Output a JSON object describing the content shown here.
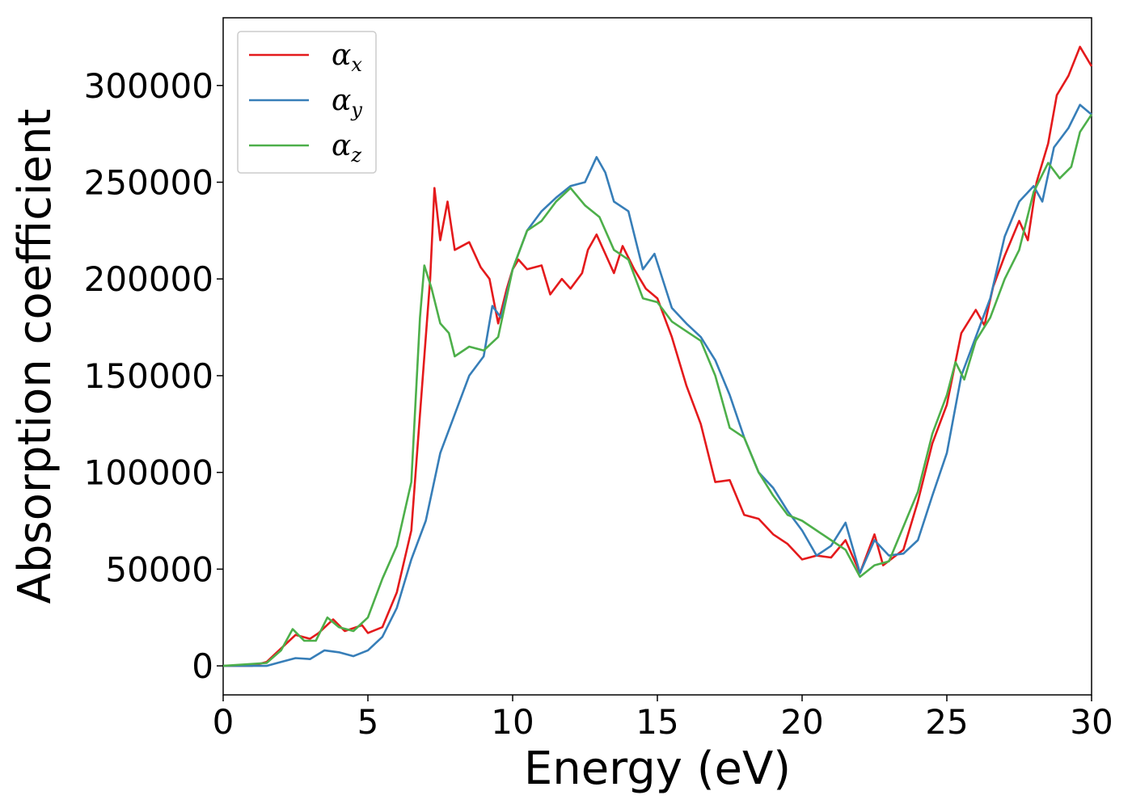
{
  "chart_data": {
    "type": "line",
    "title": "",
    "xlabel": "Energy (eV)",
    "ylabel": "Absorption coefficient",
    "xlim": [
      0,
      30
    ],
    "ylim": [
      -15000,
      335000
    ],
    "xticks": [
      0,
      5,
      10,
      15,
      20,
      25,
      30
    ],
    "yticks": [
      0,
      50000,
      100000,
      150000,
      200000,
      250000,
      300000
    ],
    "xtick_labels": [
      "0",
      "5",
      "10",
      "15",
      "20",
      "25",
      "30"
    ],
    "ytick_labels": [
      "0",
      "50000",
      "100000",
      "150000",
      "200000",
      "250000",
      "300000"
    ],
    "grid": false,
    "legend_position": "top-left",
    "series": [
      {
        "name": "α",
        "subscript": "x",
        "color": "#e41a1c",
        "points": [
          [
            0,
            0
          ],
          [
            1,
            0
          ],
          [
            1.5,
            2000
          ],
          [
            2,
            9000
          ],
          [
            2.5,
            16000
          ],
          [
            3,
            14000
          ],
          [
            3.3,
            17000
          ],
          [
            3.8,
            24000
          ],
          [
            4.2,
            18000
          ],
          [
            4.8,
            21000
          ],
          [
            5.0,
            17000
          ],
          [
            5.5,
            20000
          ],
          [
            6.0,
            38000
          ],
          [
            6.5,
            70000
          ],
          [
            6.8,
            130000
          ],
          [
            7.0,
            170000
          ],
          [
            7.15,
            200000
          ],
          [
            7.3,
            247000
          ],
          [
            7.5,
            220000
          ],
          [
            7.75,
            240000
          ],
          [
            8.0,
            215000
          ],
          [
            8.5,
            219000
          ],
          [
            8.9,
            206000
          ],
          [
            9.2,
            200000
          ],
          [
            9.5,
            177000
          ],
          [
            9.8,
            195000
          ],
          [
            10.0,
            205000
          ],
          [
            10.2,
            210000
          ],
          [
            10.5,
            205000
          ],
          [
            11.0,
            207000
          ],
          [
            11.3,
            192000
          ],
          [
            11.7,
            200000
          ],
          [
            12.0,
            195000
          ],
          [
            12.4,
            203000
          ],
          [
            12.6,
            215000
          ],
          [
            12.9,
            223000
          ],
          [
            13.2,
            213000
          ],
          [
            13.5,
            203000
          ],
          [
            13.8,
            217000
          ],
          [
            14.2,
            205000
          ],
          [
            14.6,
            195000
          ],
          [
            15.0,
            190000
          ],
          [
            15.5,
            170000
          ],
          [
            16.0,
            145000
          ],
          [
            16.5,
            125000
          ],
          [
            17.0,
            95000
          ],
          [
            17.5,
            96000
          ],
          [
            18.0,
            78000
          ],
          [
            18.5,
            76000
          ],
          [
            19.0,
            68000
          ],
          [
            19.5,
            63000
          ],
          [
            20.0,
            55000
          ],
          [
            20.5,
            57000
          ],
          [
            21.0,
            56000
          ],
          [
            21.5,
            65000
          ],
          [
            22.0,
            48000
          ],
          [
            22.5,
            68000
          ],
          [
            22.8,
            52000
          ],
          [
            23.5,
            60000
          ],
          [
            24.0,
            85000
          ],
          [
            24.5,
            115000
          ],
          [
            25.0,
            135000
          ],
          [
            25.5,
            172000
          ],
          [
            26.0,
            184000
          ],
          [
            26.3,
            176000
          ],
          [
            26.6,
            196000
          ],
          [
            27.0,
            212000
          ],
          [
            27.5,
            230000
          ],
          [
            27.8,
            220000
          ],
          [
            28.1,
            250000
          ],
          [
            28.5,
            270000
          ],
          [
            28.8,
            295000
          ],
          [
            29.2,
            305000
          ],
          [
            29.6,
            320000
          ],
          [
            30.0,
            310000
          ]
        ]
      },
      {
        "name": "α",
        "subscript": "y",
        "color": "#377eb8",
        "points": [
          [
            0,
            0
          ],
          [
            1.5,
            0
          ],
          [
            2.0,
            2000
          ],
          [
            2.5,
            4000
          ],
          [
            3.0,
            3500
          ],
          [
            3.5,
            8000
          ],
          [
            4.0,
            7000
          ],
          [
            4.5,
            5000
          ],
          [
            5.0,
            8000
          ],
          [
            5.5,
            15000
          ],
          [
            6.0,
            30000
          ],
          [
            6.5,
            55000
          ],
          [
            7.0,
            75000
          ],
          [
            7.5,
            110000
          ],
          [
            8.0,
            130000
          ],
          [
            8.5,
            150000
          ],
          [
            9.0,
            160000
          ],
          [
            9.3,
            186000
          ],
          [
            9.6,
            180000
          ],
          [
            10.0,
            205000
          ],
          [
            10.5,
            225000
          ],
          [
            11.0,
            235000
          ],
          [
            11.5,
            242000
          ],
          [
            12.0,
            248000
          ],
          [
            12.5,
            250000
          ],
          [
            12.9,
            263000
          ],
          [
            13.2,
            255000
          ],
          [
            13.5,
            240000
          ],
          [
            14.0,
            235000
          ],
          [
            14.5,
            205000
          ],
          [
            14.9,
            213000
          ],
          [
            15.5,
            185000
          ],
          [
            16.0,
            177000
          ],
          [
            16.5,
            170000
          ],
          [
            17.0,
            158000
          ],
          [
            17.5,
            140000
          ],
          [
            18.0,
            118000
          ],
          [
            18.5,
            100000
          ],
          [
            19.0,
            92000
          ],
          [
            19.5,
            80000
          ],
          [
            20.0,
            70000
          ],
          [
            20.5,
            57000
          ],
          [
            21.0,
            62000
          ],
          [
            21.5,
            74000
          ],
          [
            22.0,
            48000
          ],
          [
            22.5,
            65000
          ],
          [
            23.0,
            57000
          ],
          [
            23.5,
            58000
          ],
          [
            24.0,
            65000
          ],
          [
            24.5,
            88000
          ],
          [
            25.0,
            110000
          ],
          [
            25.5,
            150000
          ],
          [
            26.0,
            170000
          ],
          [
            26.5,
            190000
          ],
          [
            27.0,
            222000
          ],
          [
            27.5,
            240000
          ],
          [
            28.0,
            248000
          ],
          [
            28.3,
            240000
          ],
          [
            28.7,
            268000
          ],
          [
            29.2,
            278000
          ],
          [
            29.6,
            290000
          ],
          [
            30.0,
            285000
          ]
        ]
      },
      {
        "name": "α",
        "subscript": "z",
        "color": "#4daf4a",
        "points": [
          [
            0,
            0
          ],
          [
            1.5,
            1500
          ],
          [
            2.0,
            8000
          ],
          [
            2.4,
            19000
          ],
          [
            2.8,
            13000
          ],
          [
            3.2,
            13000
          ],
          [
            3.6,
            25000
          ],
          [
            4.0,
            20000
          ],
          [
            4.5,
            18000
          ],
          [
            5.0,
            25000
          ],
          [
            5.5,
            45000
          ],
          [
            6.0,
            62000
          ],
          [
            6.5,
            95000
          ],
          [
            6.8,
            180000
          ],
          [
            6.95,
            207000
          ],
          [
            7.2,
            195000
          ],
          [
            7.5,
            177000
          ],
          [
            7.8,
            172000
          ],
          [
            8.0,
            160000
          ],
          [
            8.5,
            165000
          ],
          [
            9.0,
            163000
          ],
          [
            9.5,
            170000
          ],
          [
            10.0,
            205000
          ],
          [
            10.5,
            225000
          ],
          [
            11.0,
            230000
          ],
          [
            11.5,
            240000
          ],
          [
            12.0,
            247000
          ],
          [
            12.5,
            238000
          ],
          [
            13.0,
            232000
          ],
          [
            13.5,
            215000
          ],
          [
            14.0,
            210000
          ],
          [
            14.5,
            190000
          ],
          [
            15.0,
            188000
          ],
          [
            15.5,
            178000
          ],
          [
            16.0,
            173000
          ],
          [
            16.5,
            168000
          ],
          [
            17.0,
            150000
          ],
          [
            17.5,
            123000
          ],
          [
            18.0,
            118000
          ],
          [
            18.5,
            100000
          ],
          [
            19.0,
            88000
          ],
          [
            19.5,
            78000
          ],
          [
            20.0,
            75000
          ],
          [
            20.5,
            70000
          ],
          [
            21.0,
            65000
          ],
          [
            21.5,
            60000
          ],
          [
            22.0,
            46000
          ],
          [
            22.5,
            52000
          ],
          [
            23.0,
            54000
          ],
          [
            23.5,
            72000
          ],
          [
            24.0,
            90000
          ],
          [
            24.5,
            120000
          ],
          [
            25.0,
            140000
          ],
          [
            25.3,
            157000
          ],
          [
            25.6,
            148000
          ],
          [
            26.0,
            168000
          ],
          [
            26.5,
            180000
          ],
          [
            27.0,
            200000
          ],
          [
            27.5,
            215000
          ],
          [
            28.0,
            245000
          ],
          [
            28.5,
            260000
          ],
          [
            28.9,
            252000
          ],
          [
            29.3,
            258000
          ],
          [
            29.6,
            276000
          ],
          [
            30.0,
            285000
          ]
        ]
      }
    ]
  }
}
